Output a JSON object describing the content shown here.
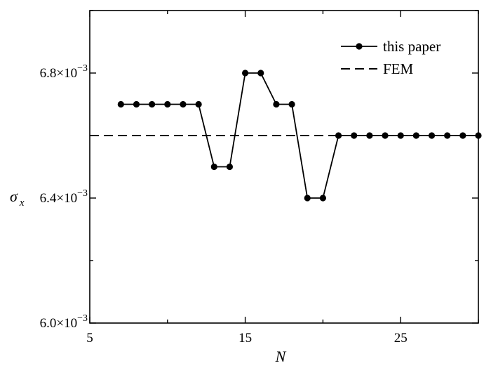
{
  "chart_data": {
    "type": "line",
    "xlabel": "N",
    "ylabel": "σ",
    "ylabel_subscript": "x",
    "xlim": [
      5,
      30
    ],
    "ylim": [
      0.006,
      0.007
    ],
    "x_ticks": [
      5,
      15,
      25
    ],
    "x_tick_labels": [
      "5",
      "15",
      "25"
    ],
    "y_ticks": [
      0.006,
      0.0064,
      0.0068
    ],
    "y_tick_labels": [
      {
        "mantissa": "6.0×10",
        "exponent": "−3"
      },
      {
        "mantissa": "6.4×10",
        "exponent": "−3"
      },
      {
        "mantissa": "6.8×10",
        "exponent": "−3"
      }
    ],
    "grid": false,
    "legend_position": "top-right",
    "series": [
      {
        "name": "this paper",
        "style": "solid-line-circle-markers",
        "color": "#000000",
        "x": [
          7,
          8,
          9,
          10,
          11,
          12,
          13,
          14,
          15,
          16,
          17,
          18,
          19,
          20,
          21,
          22,
          23,
          24,
          25,
          26,
          27,
          28,
          29,
          30
        ],
        "y": [
          0.0067,
          0.0067,
          0.0067,
          0.0067,
          0.0067,
          0.0067,
          0.0065,
          0.0065,
          0.0068,
          0.0068,
          0.0067,
          0.0067,
          0.0064,
          0.0064,
          0.0066,
          0.0066,
          0.0066,
          0.0066,
          0.0066,
          0.0066,
          0.0066,
          0.0066,
          0.0066,
          0.0066
        ]
      },
      {
        "name": "FEM",
        "style": "dashed-line",
        "color": "#000000",
        "x": [
          5,
          30
        ],
        "y": [
          0.0066,
          0.0066
        ]
      }
    ]
  }
}
